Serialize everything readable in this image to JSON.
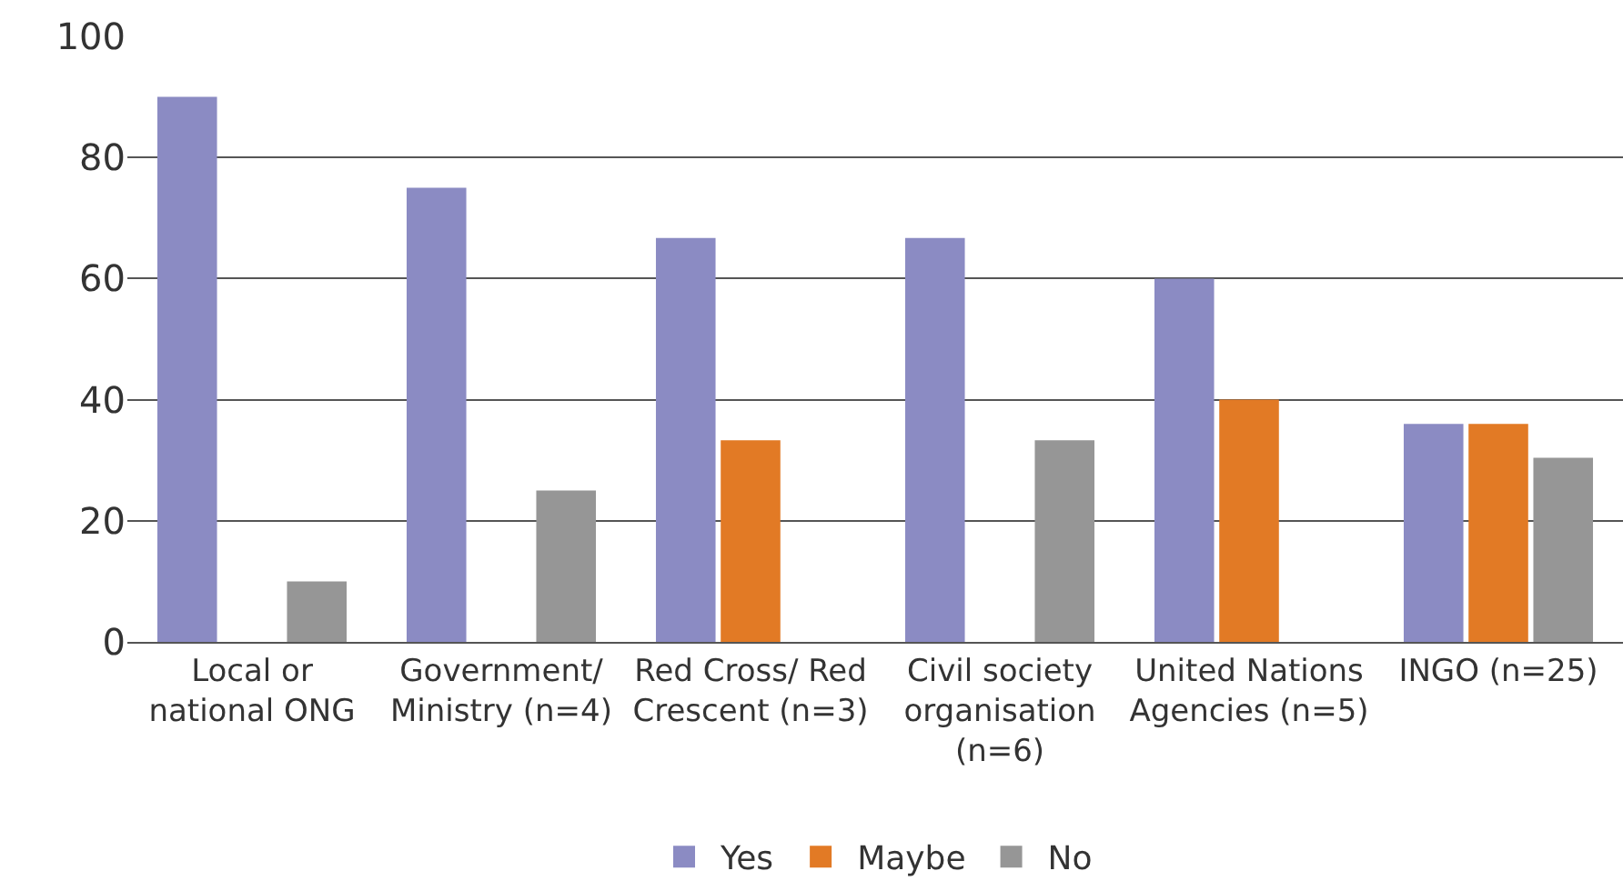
{
  "chart_data": {
    "type": "bar",
    "categories": [
      "Local or national ONG",
      "Government/ Ministry (n=4)",
      "Red Cross/ Red Crescent (n=3)",
      "Civil society organisation (n=6)",
      "United Nations Agencies (n=5)",
      "INGO (n=25)"
    ],
    "series": [
      {
        "name": "Yes",
        "color": "#8b8bc3",
        "values": [
          90,
          75,
          66.7,
          66.7,
          60,
          36
        ]
      },
      {
        "name": "Maybe",
        "color": "#e27a25",
        "values": [
          0,
          0,
          33.3,
          0,
          40,
          36
        ]
      },
      {
        "name": "No",
        "color": "#969696",
        "values": [
          10,
          25,
          0,
          33.3,
          0,
          30.4
        ]
      }
    ],
    "ylim": [
      0,
      100
    ],
    "yticks": [
      0,
      20,
      40,
      60,
      80,
      100
    ],
    "grid": "y",
    "legend": "bottom"
  }
}
